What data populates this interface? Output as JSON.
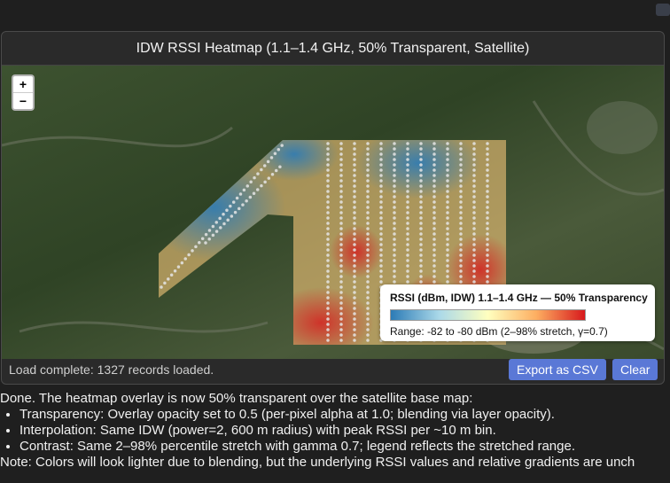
{
  "window": {
    "title": "IDW RSSI Heatmap (1.1–1.4 GHz, 50% Transparent, Satellite)",
    "zoom_in": "+",
    "zoom_out": "−",
    "legend": {
      "title": "RSSI (dBm, IDW) 1.1–1.4 GHz — 50% Transparency",
      "range": "Range: -82 to -80 dBm (2–98% stretch, γ=0.7)"
    },
    "status": "Load complete: 1327 records loaded.",
    "buttons": [
      "Export as CSV",
      "Clear"
    ]
  },
  "message": {
    "intro": "Done. The heatmap overlay is now 50% transparent over the satellite base map:",
    "bullets": [
      "Transparency: Overlay opacity set to 0.5 (per-pixel alpha at 1.0; blending via layer opacity).",
      "Interpolation: Same IDW (power=2, 600 m radius) with peak RSSI per ~10 m bin.",
      "Contrast: Same 2–98% percentile stretch with gamma 0.7; legend reflects the stretched range."
    ],
    "note": "Note: Colors will look lighter due to blending, but the underlying RSSI values and relative gradients are unch"
  }
}
